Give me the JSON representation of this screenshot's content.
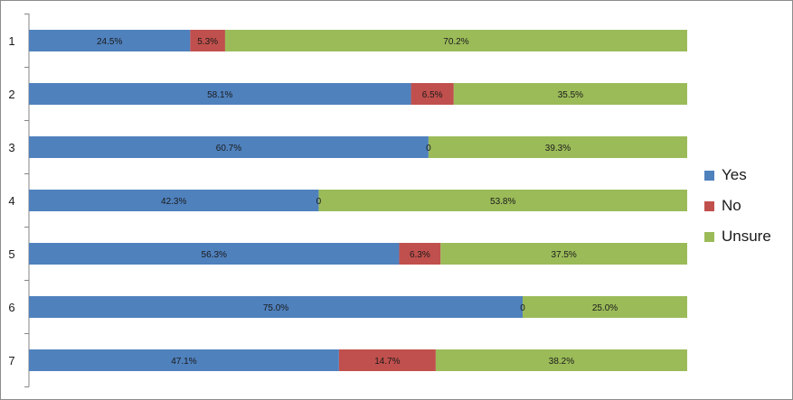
{
  "chart_data": {
    "type": "bar",
    "orientation": "horizontal",
    "stacked": true,
    "categories": [
      "1",
      "2",
      "3",
      "4",
      "5",
      "6",
      "7"
    ],
    "series": [
      {
        "name": "Yes",
        "color": "#4f81bd",
        "values": [
          24.5,
          58.1,
          60.7,
          42.3,
          56.3,
          75.0,
          47.1
        ],
        "labels": [
          "24.5%",
          "58.1%",
          "60.7%",
          "42.3%",
          "56.3%",
          "75.0%",
          "47.1%"
        ]
      },
      {
        "name": "No",
        "color": "#c0504d",
        "values": [
          5.3,
          6.5,
          0,
          0,
          6.3,
          0,
          14.7
        ],
        "labels": [
          "5.3%",
          "6.5%",
          "0",
          "0",
          "6.3%",
          "0",
          "14.7%"
        ]
      },
      {
        "name": "Unsure",
        "color": "#9bbb59",
        "values": [
          70.2,
          35.5,
          39.3,
          53.8,
          37.5,
          25.0,
          38.2
        ],
        "labels": [
          "70.2%",
          "35.5%",
          "39.3%",
          "53.8%",
          "37.5%",
          "25.0%",
          "38.2%"
        ]
      }
    ],
    "title": "",
    "xlabel": "",
    "ylabel": "",
    "xlim": [
      0,
      100
    ],
    "grid": false,
    "legend_position": "right"
  }
}
